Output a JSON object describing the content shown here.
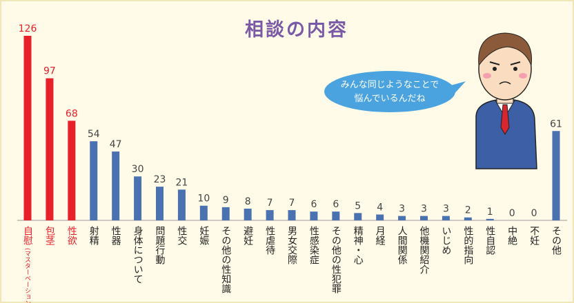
{
  "chart_data": {
    "type": "bar",
    "title": "相談の内容",
    "categories": [
      "自慰",
      "包茎",
      "性欲",
      "射精",
      "性器",
      "身体について",
      "問題行動",
      "性交",
      "妊娠",
      "その他の性知識",
      "避妊",
      "性虐待",
      "男女交際",
      "性感染症",
      "その他の性犯罪",
      "精神・心",
      "月経",
      "人間関係",
      "他機関紹介",
      "いじめ",
      "性的指向",
      "性自認",
      "中絶",
      "不妊",
      "その他"
    ],
    "category_sublabels": [
      "(マスターベーション)",
      null,
      null,
      null,
      null,
      null,
      null,
      null,
      null,
      null,
      null,
      null,
      null,
      null,
      null,
      null,
      null,
      null,
      null,
      null,
      null,
      null,
      null,
      null,
      null
    ],
    "values": [
      126,
      97,
      68,
      54,
      47,
      30,
      23,
      21,
      10,
      9,
      8,
      7,
      7,
      6,
      6,
      5,
      4,
      3,
      3,
      3,
      2,
      1,
      0,
      0,
      61
    ],
    "colors": [
      "#e8202a",
      "#e8202a",
      "#e8202a",
      "#4a72b0",
      "#4a72b0",
      "#4a72b0",
      "#4a72b0",
      "#4a72b0",
      "#4a72b0",
      "#4a72b0",
      "#4a72b0",
      "#4a72b0",
      "#4a72b0",
      "#4a72b0",
      "#4a72b0",
      "#4a72b0",
      "#4a72b0",
      "#4a72b0",
      "#4a72b0",
      "#4a72b0",
      "#4a72b0",
      "#4a72b0",
      "#4a72b0",
      "#4a72b0",
      "#4a72b0"
    ],
    "speech_bubble": [
      "みんな同じようなことで",
      "悩んでいるんだね"
    ]
  }
}
